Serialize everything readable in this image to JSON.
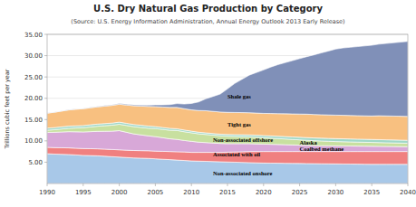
{
  "chart_data": {
    "type": "area",
    "stacked": true,
    "title": "U.S. Dry Natural Gas Production by Category",
    "subtitle": "(Source: U.S. Energy Information Administration, Annual Energy Outlook 2013 Early Release)",
    "y_label": "Trillions cubic feet per year",
    "grid": true,
    "xlim": [
      1990,
      2040
    ],
    "xticks": [
      1990,
      1995,
      2000,
      2005,
      2010,
      2015,
      2020,
      2025,
      2030,
      2035,
      2040
    ],
    "ylim": [
      0,
      35
    ],
    "yticks": [
      {
        "value": 5.0,
        "label": "5.00"
      },
      {
        "value": 10.0,
        "label": "10.00"
      },
      {
        "value": 15.0,
        "label": "15.00"
      },
      {
        "value": 20.0,
        "label": "20.00"
      },
      {
        "value": 25.0,
        "label": "25.00"
      },
      {
        "value": 30.0,
        "label": "30.00"
      },
      {
        "value": 35.0,
        "label": "35.00"
      }
    ],
    "x": [
      1990,
      1991,
      1992,
      1993,
      1994,
      1995,
      1996,
      1997,
      1998,
      1999,
      2000,
      2001,
      2002,
      2003,
      2004,
      2005,
      2006,
      2007,
      2008,
      2009,
      2010,
      2011,
      2012,
      2013,
      2014,
      2015,
      2016,
      2017,
      2018,
      2019,
      2020,
      2021,
      2022,
      2023,
      2024,
      2025,
      2026,
      2027,
      2028,
      2029,
      2030,
      2031,
      2032,
      2033,
      2034,
      2035,
      2036,
      2037,
      2038,
      2039,
      2040
    ],
    "series": [
      {
        "name": "Non-associated onshore",
        "color": "#a8c8e8",
        "values": [
          7.0,
          6.9,
          6.85,
          6.8,
          6.7,
          6.6,
          6.55,
          6.5,
          6.4,
          6.3,
          6.2,
          6.1,
          6.0,
          5.95,
          5.9,
          5.8,
          5.7,
          5.6,
          5.5,
          5.4,
          5.3,
          5.25,
          5.2,
          5.15,
          5.1,
          5.05,
          5.0,
          4.95,
          4.9,
          4.85,
          4.8,
          4.78,
          4.76,
          4.74,
          4.72,
          4.7,
          4.68,
          4.66,
          4.64,
          4.62,
          4.6,
          4.58,
          4.56,
          4.54,
          4.52,
          4.5,
          4.5,
          4.5,
          4.5,
          4.5,
          4.5
        ]
      },
      {
        "name": "Associated with oil",
        "color": "#f08080",
        "values": [
          1.5,
          1.52,
          1.54,
          1.56,
          1.58,
          1.6,
          1.62,
          1.64,
          1.66,
          1.68,
          1.7,
          1.72,
          1.74,
          1.76,
          1.78,
          1.8,
          1.85,
          1.9,
          1.95,
          2.0,
          2.0,
          2.05,
          2.1,
          2.15,
          2.2,
          2.3,
          2.4,
          2.5,
          2.6,
          2.65,
          2.7,
          2.72,
          2.74,
          2.76,
          2.78,
          2.8,
          2.82,
          2.84,
          2.86,
          2.88,
          2.9,
          2.92,
          2.94,
          2.96,
          2.98,
          3.0,
          3.0,
          3.0,
          3.0,
          3.0,
          3.0
        ]
      },
      {
        "name": "Non-associated offshore",
        "color": "#d8a8d8",
        "values": [
          3.5,
          3.6,
          3.7,
          3.8,
          3.85,
          3.9,
          4.0,
          4.1,
          4.2,
          4.3,
          4.5,
          4.2,
          3.9,
          3.7,
          3.5,
          3.4,
          3.2,
          3.0,
          2.9,
          2.7,
          2.6,
          2.4,
          2.3,
          2.2,
          2.1,
          2.0,
          1.95,
          1.9,
          1.85,
          1.8,
          1.75,
          1.7,
          1.65,
          1.6,
          1.55,
          1.5,
          1.45,
          1.4,
          1.38,
          1.36,
          1.34,
          1.32,
          1.3,
          1.28,
          1.26,
          1.24,
          1.22,
          1.2,
          1.18,
          1.16,
          1.14
        ]
      },
      {
        "name": "Coalbed methane",
        "color": "#c8e0a0",
        "values": [
          0.5,
          0.6,
          0.7,
          0.8,
          0.9,
          1.0,
          1.1,
          1.2,
          1.3,
          1.4,
          1.5,
          1.6,
          1.7,
          1.75,
          1.8,
          1.9,
          1.95,
          2.0,
          2.1,
          2.05,
          2.0,
          1.95,
          1.9,
          1.85,
          1.8,
          1.75,
          1.7,
          1.65,
          1.6,
          1.55,
          1.5,
          1.45,
          1.4,
          1.35,
          1.3,
          1.25,
          1.2,
          1.15,
          1.1,
          1.05,
          1.0,
          0.98,
          0.96,
          0.94,
          0.92,
          0.9,
          0.88,
          0.86,
          0.84,
          0.82,
          0.8
        ]
      },
      {
        "name": "Alaska",
        "color": "#a0d8c8",
        "values": [
          0.5,
          0.5,
          0.5,
          0.5,
          0.5,
          0.5,
          0.5,
          0.5,
          0.5,
          0.5,
          0.5,
          0.5,
          0.5,
          0.5,
          0.5,
          0.45,
          0.45,
          0.45,
          0.4,
          0.4,
          0.38,
          0.38,
          0.38,
          0.38,
          0.38,
          0.4,
          0.42,
          0.44,
          0.46,
          0.48,
          0.5,
          0.52,
          0.54,
          0.56,
          0.58,
          0.6,
          0.62,
          0.64,
          0.66,
          0.68,
          0.7,
          0.7,
          0.7,
          0.7,
          0.7,
          0.7,
          0.7,
          0.7,
          0.7,
          0.7,
          0.7
        ]
      },
      {
        "name": "Tight gas",
        "color": "#f8c080",
        "values": [
          3.5,
          3.6,
          3.7,
          3.8,
          3.9,
          3.95,
          4.0,
          4.05,
          4.1,
          4.15,
          4.2,
          4.3,
          4.4,
          4.5,
          4.6,
          4.7,
          4.8,
          4.9,
          5.0,
          5.0,
          5.0,
          5.1,
          5.2,
          5.2,
          5.2,
          5.2,
          5.2,
          5.2,
          5.2,
          5.2,
          5.2,
          5.25,
          5.3,
          5.35,
          5.4,
          5.45,
          5.5,
          5.5,
          5.5,
          5.5,
          5.5,
          5.5,
          5.5,
          5.5,
          5.5,
          5.5,
          5.6,
          5.6,
          5.6,
          5.6,
          5.6
        ]
      },
      {
        "name": "Shale gas",
        "color": "#8090b8",
        "values": [
          0.05,
          0.05,
          0.05,
          0.06,
          0.07,
          0.08,
          0.09,
          0.1,
          0.12,
          0.14,
          0.16,
          0.18,
          0.2,
          0.25,
          0.3,
          0.4,
          0.5,
          0.65,
          0.9,
          1.1,
          1.5,
          2.0,
          2.8,
          3.5,
          4.2,
          5.5,
          6.8,
          7.8,
          8.8,
          9.5,
          10.2,
          10.9,
          11.5,
          12.0,
          12.5,
          13.0,
          13.5,
          14.0,
          14.5,
          15.0,
          15.5,
          15.8,
          16.0,
          16.2,
          16.4,
          16.6,
          16.8,
          17.0,
          17.2,
          17.4,
          17.6
        ]
      }
    ],
    "annotations": [
      {
        "text": "Shale gas",
        "x": 2015,
        "y": 20.5
      },
      {
        "text": "Tight gas",
        "x": 2015,
        "y": 13.8
      },
      {
        "text": "Non-associated offshore",
        "x": 2013,
        "y": 10.3
      },
      {
        "text": "Alaska",
        "x": 2025,
        "y": 9.7
      },
      {
        "text": "Coalbed methane",
        "x": 2025,
        "y": 8.2
      },
      {
        "text": "Associated with oil",
        "x": 2013,
        "y": 7.0
      },
      {
        "text": "Non-associated onshore",
        "x": 2013,
        "y": 2.5
      }
    ]
  }
}
